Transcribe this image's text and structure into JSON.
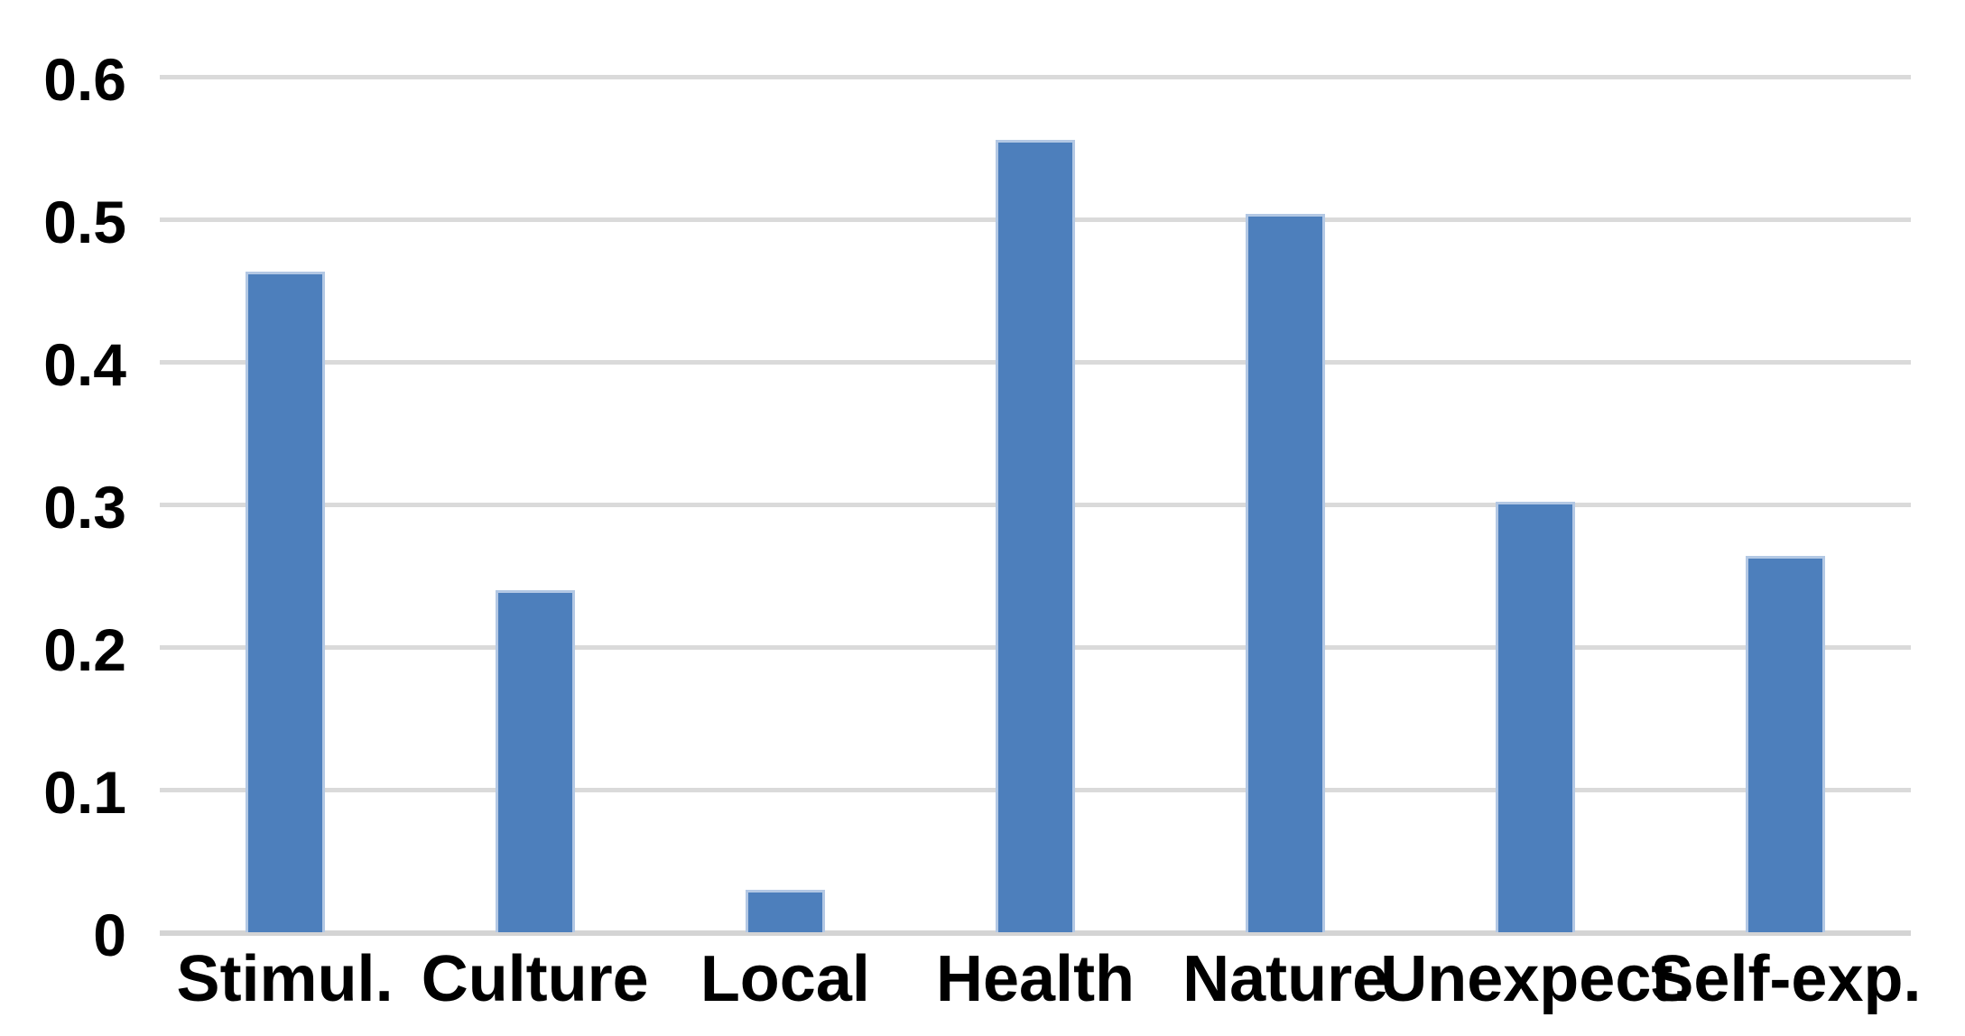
{
  "chart_data": {
    "type": "bar",
    "title": "",
    "xlabel": "",
    "ylabel": "",
    "categories": [
      "Stimul.",
      "Culture",
      "Local",
      "Health",
      "Nature",
      "Unexpect.",
      "Self-exp."
    ],
    "values": [
      0.463,
      0.24,
      0.03,
      0.556,
      0.504,
      0.302,
      0.264
    ],
    "ylim": [
      0,
      0.6
    ],
    "ytick_labels": [
      "0",
      "0.1",
      "0.2",
      "0.3",
      "0.4",
      "0.5",
      "0.6"
    ],
    "grid": true,
    "legend": false,
    "colors": {
      "bar_fill": "#4d7fbc",
      "bar_edge": "#b3c8e4",
      "gridline": "#dadada",
      "zero_line": "#d4d4d4",
      "axis_text": "#000000",
      "background": "#ffffff"
    }
  }
}
